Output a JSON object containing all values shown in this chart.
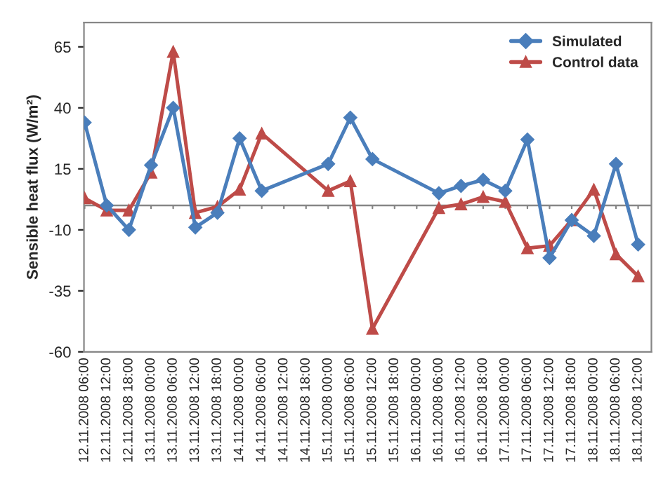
{
  "chart_data": {
    "type": "line",
    "ylabel": "Sensible heat flux (W/m²)",
    "categories": [
      "12.11.2008 06:00",
      "12.11.2008 12:00",
      "12.11.2008 18:00",
      "13.11.2008 00:00",
      "13.11.2008 06:00",
      "13.11.2008 12:00",
      "13.11.2008 18:00",
      "14.11.2008 00:00",
      "14.11.2008 06:00",
      "14.11.2008 12:00",
      "14.11.2008 18:00",
      "15.11.2008 00:00",
      "15.11.2008 06:00",
      "15.11.2008 12:00",
      "15.11.2008 18:00",
      "16.11.2008 00:00",
      "16.11.2008 06:00",
      "16.11.2008 12:00",
      "16.11.2008 18:00",
      "17.11.2008 00:00",
      "17.11.2008 06:00",
      "17.11.2008 12:00",
      "17.11.2008 18:00",
      "18.11.2008 00:00",
      "18.11.2008 06:00",
      "18.11.2008 12:00"
    ],
    "series": [
      {
        "name": "Simulated",
        "color": "#4a7ebb",
        "marker": "diamond",
        "values": [
          34,
          0,
          -10,
          16.5,
          40,
          -9,
          -3,
          27.5,
          6,
          null,
          null,
          17,
          36,
          19,
          null,
          null,
          5,
          8,
          10.5,
          6,
          27,
          -21.5,
          -6,
          -12.5,
          17,
          -16
        ]
      },
      {
        "name": "Control data",
        "color": "#be4b48",
        "marker": "triangle",
        "values": [
          3,
          -2,
          -2,
          13.5,
          63,
          -3,
          -0.5,
          6.5,
          29.5,
          null,
          null,
          6,
          10,
          -50.5,
          null,
          null,
          -1,
          0.5,
          3.5,
          1.5,
          -17.5,
          -16.5,
          -6,
          6.5,
          -20,
          -29
        ]
      }
    ],
    "ylim": [
      -60,
      75
    ],
    "yticks": [
      -60,
      -35,
      -10,
      15,
      40,
      65
    ],
    "ref_lines": [
      {
        "axis": "y",
        "value": 0,
        "color": "#868686"
      }
    ],
    "grid": false,
    "legend": "top right",
    "line_style": "solid"
  }
}
